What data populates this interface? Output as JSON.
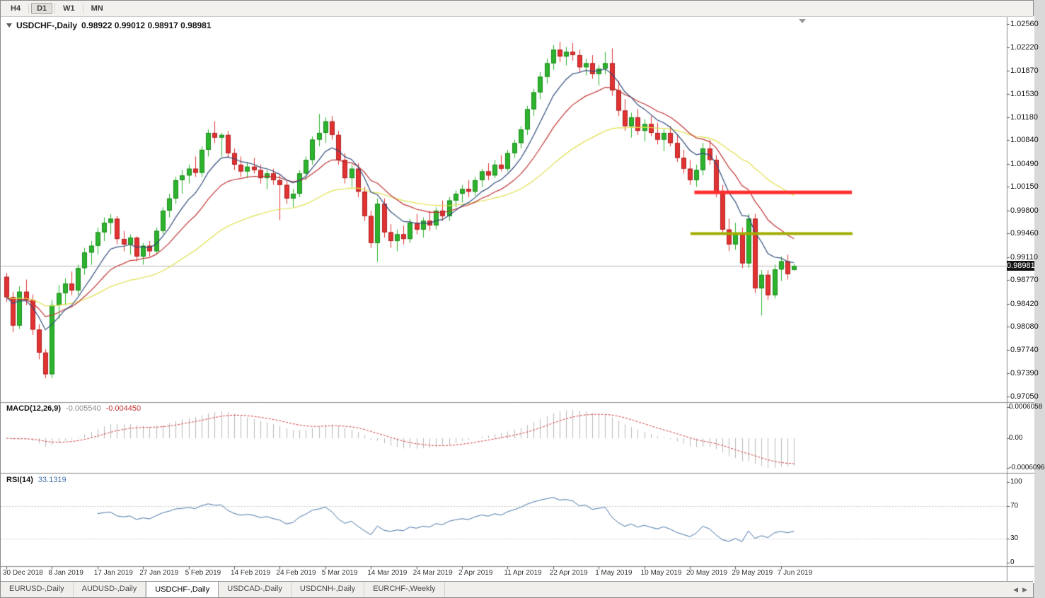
{
  "toolbar": {
    "timeframes": [
      "H4",
      "D1",
      "W1",
      "MN"
    ],
    "active_index": 1
  },
  "header": {
    "symbol": "USDCHF-,Daily",
    "ohlc": "0.98922 0.99012 0.98917 0.98981"
  },
  "price_axis": {
    "labels": [
      "1.02560",
      "1.02220",
      "1.01870",
      "1.01530",
      "1.01180",
      "1.00840",
      "1.00490",
      "1.00150",
      "0.99800",
      "0.99460",
      "0.99110",
      "0.98770",
      "0.98420",
      "0.98080",
      "0.97740",
      "0.97390",
      "0.97050"
    ],
    "current_badge": "0.98981"
  },
  "macd_panel": {
    "label": "MACD(12,26,9)",
    "value_main": "-0.005540",
    "value_signal": "-0.004450",
    "axis_labels": [
      "0.0006058",
      "0.00",
      "-0.0006096"
    ]
  },
  "rsi_panel": {
    "label": "RSI(14)",
    "value": "33.1319",
    "axis_labels": [
      "100",
      "70",
      "30",
      "0"
    ],
    "axis_values": [
      100,
      70,
      30,
      0
    ],
    "levels": [
      70,
      30
    ]
  },
  "date_axis": [
    {
      "text": "30 Dec 2018",
      "bar": 0
    },
    {
      "text": "8 Jan 2019",
      "bar": 7
    },
    {
      "text": "17 Jan 2019",
      "bar": 14
    },
    {
      "text": "27 Jan 2019",
      "bar": 21
    },
    {
      "text": "5 Feb 2019",
      "bar": 28
    },
    {
      "text": "14 Feb 2019",
      "bar": 35
    },
    {
      "text": "24 Feb 2019",
      "bar": 42
    },
    {
      "text": "5 Mar 2019",
      "bar": 49
    },
    {
      "text": "14 Mar 2019",
      "bar": 56
    },
    {
      "text": "24 Mar 2019",
      "bar": 63
    },
    {
      "text": "2 Apr 2019",
      "bar": 70
    },
    {
      "text": "11 Apr 2019",
      "bar": 77
    },
    {
      "text": "22 Apr 2019",
      "bar": 84
    },
    {
      "text": "1 May 2019",
      "bar": 91
    },
    {
      "text": "10 May 2019",
      "bar": 98
    },
    {
      "text": "20 May 2019",
      "bar": 105
    },
    {
      "text": "29 May 2019",
      "bar": 112
    },
    {
      "text": "7 Jun 2019",
      "bar": 119
    }
  ],
  "tabs": {
    "items": [
      "EURUSD-,Daily",
      "AUDUSD-,Daily",
      "USDCHF-,Daily",
      "USDCAD-,Daily",
      "USDCNH-,Daily",
      "EURCHF-,Weekly"
    ],
    "active_index": 2,
    "nav_left": "◀",
    "nav_right": "▶"
  },
  "chart_data": {
    "type": "candlestick",
    "symbol": "USDCHF",
    "timeframe": "Daily",
    "current_price": 0.98981,
    "price_axis_top": 1.0256,
    "price_axis_bottom": 0.9705,
    "candles": [
      [
        0.9882,
        0.9888,
        0.9845,
        0.9852
      ],
      [
        0.9852,
        0.986,
        0.98,
        0.981
      ],
      [
        0.981,
        0.9868,
        0.9805,
        0.986
      ],
      [
        0.986,
        0.9878,
        0.984,
        0.9848
      ],
      [
        0.9848,
        0.9856,
        0.9796,
        0.9804
      ],
      [
        0.9804,
        0.9812,
        0.976,
        0.977
      ],
      [
        0.977,
        0.9775,
        0.9732,
        0.9738
      ],
      [
        0.9738,
        0.9848,
        0.9732,
        0.984
      ],
      [
        0.984,
        0.987,
        0.982,
        0.9858
      ],
      [
        0.9858,
        0.988,
        0.984,
        0.9872
      ],
      [
        0.9872,
        0.989,
        0.9855,
        0.9862
      ],
      [
        0.9862,
        0.99,
        0.9855,
        0.9895
      ],
      [
        0.9895,
        0.9925,
        0.9885,
        0.9918
      ],
      [
        0.9918,
        0.9935,
        0.99,
        0.9928
      ],
      [
        0.9928,
        0.9955,
        0.9915,
        0.9948
      ],
      [
        0.9948,
        0.997,
        0.9935,
        0.9962
      ],
      [
        0.9962,
        0.9975,
        0.9945,
        0.9968
      ],
      [
        0.9968,
        0.9972,
        0.993,
        0.9938
      ],
      [
        0.9938,
        0.995,
        0.992,
        0.993
      ],
      [
        0.993,
        0.9945,
        0.9915,
        0.994
      ],
      [
        0.994,
        0.9942,
        0.9905,
        0.9912
      ],
      [
        0.9912,
        0.9932,
        0.99,
        0.9928
      ],
      [
        0.9928,
        0.9935,
        0.9912,
        0.992
      ],
      [
        0.992,
        0.9955,
        0.9915,
        0.995
      ],
      [
        0.995,
        0.9985,
        0.9945,
        0.998
      ],
      [
        0.998,
        1.0005,
        0.997,
        0.9998
      ],
      [
        0.9998,
        1.003,
        0.999,
        1.0025
      ],
      [
        1.0025,
        1.004,
        1.0005,
        1.0032
      ],
      [
        1.0032,
        1.0048,
        1.002,
        1.0042
      ],
      [
        1.0042,
        1.006,
        1.003,
        1.0036
      ],
      [
        1.0036,
        1.0075,
        1.003,
        1.007
      ],
      [
        1.007,
        1.01,
        1.006,
        1.0095
      ],
      [
        1.0095,
        1.0112,
        1.008,
        1.0088
      ],
      [
        1.0088,
        1.0095,
        1.006,
        1.0092
      ],
      [
        1.0092,
        1.0098,
        1.0058,
        1.0065
      ],
      [
        1.0065,
        1.0072,
        1.004,
        1.0048
      ],
      [
        1.0048,
        1.006,
        1.003,
        1.0038
      ],
      [
        1.0038,
        1.0052,
        1.0028,
        1.0045
      ],
      [
        1.0045,
        1.0058,
        1.0035,
        1.004
      ],
      [
        1.004,
        1.0048,
        1.002,
        1.0028
      ],
      [
        1.0028,
        1.004,
        1.0012,
        1.0035
      ],
      [
        1.0035,
        1.0042,
        1.0018,
        1.0025
      ],
      [
        1.0025,
        1.0032,
        0.9966,
        1.0018
      ],
      [
        1.0018,
        1.0025,
        0.999,
        0.9998
      ],
      [
        0.9998,
        1.0012,
        0.9985,
        1.0005
      ],
      [
        1.0005,
        1.004,
        1.0,
        1.0035
      ],
      [
        1.0035,
        1.006,
        1.0025,
        1.0055
      ],
      [
        1.0055,
        1.009,
        1.0048,
        1.0085
      ],
      [
        1.0085,
        1.0123,
        1.0075,
        1.0095
      ],
      [
        1.0095,
        1.0118,
        1.008,
        1.0112
      ],
      [
        1.0112,
        1.012,
        1.0085,
        1.0092
      ],
      [
        1.0092,
        1.0098,
        1.0048,
        1.0055
      ],
      [
        1.0055,
        1.0065,
        1.002,
        1.0028
      ],
      [
        1.0028,
        1.0048,
        1.0015,
        1.0042
      ],
      [
        1.0042,
        1.005,
        1.0,
        1.0008
      ],
      [
        1.0008,
        1.0015,
        0.9965,
        0.9972
      ],
      [
        0.9972,
        0.998,
        0.9925,
        0.9932
      ],
      [
        0.9932,
        0.9998,
        0.9904,
        0.999
      ],
      [
        0.999,
        0.9998,
        0.994,
        0.9948
      ],
      [
        0.9948,
        0.996,
        0.9925,
        0.9935
      ],
      [
        0.9935,
        0.9952,
        0.992,
        0.9945
      ],
      [
        0.9945,
        0.9958,
        0.993,
        0.9938
      ],
      [
        0.9938,
        0.9968,
        0.9932,
        0.9962
      ],
      [
        0.9962,
        0.9975,
        0.9945,
        0.9952
      ],
      [
        0.9952,
        0.997,
        0.994,
        0.9965
      ],
      [
        0.9965,
        0.998,
        0.995,
        0.9958
      ],
      [
        0.9958,
        0.9985,
        0.9952,
        0.998
      ],
      [
        0.998,
        0.9995,
        0.9965,
        0.9972
      ],
      [
        0.9972,
        1.0,
        0.9965,
        0.9995
      ],
      [
        0.9995,
        1.001,
        0.9985,
        1.0005
      ],
      [
        1.0005,
        1.0018,
        0.9992,
        1.0012
      ],
      [
        1.0012,
        1.0025,
        1.0,
        1.0008
      ],
      [
        1.0008,
        1.003,
        1.0002,
        1.0025
      ],
      [
        1.0025,
        1.0042,
        1.0015,
        1.0038
      ],
      [
        1.0038,
        1.005,
        1.0025,
        1.0032
      ],
      [
        1.0032,
        1.0055,
        1.0028,
        1.0048
      ],
      [
        1.0048,
        1.0062,
        1.0038,
        1.0042
      ],
      [
        1.0042,
        1.007,
        1.0038,
        1.0065
      ],
      [
        1.0065,
        1.0085,
        1.0058,
        1.008
      ],
      [
        1.008,
        1.0105,
        1.0072,
        1.01
      ],
      [
        1.01,
        1.0135,
        1.0092,
        1.013
      ],
      [
        1.013,
        1.016,
        1.012,
        1.0155
      ],
      [
        1.0155,
        1.0185,
        1.0145,
        1.0178
      ],
      [
        1.0178,
        1.0205,
        1.0168,
        1.0198
      ],
      [
        1.0198,
        1.0225,
        1.0188,
        1.0218
      ],
      [
        1.0218,
        1.023,
        1.02,
        1.0208
      ],
      [
        1.0208,
        1.0222,
        1.0195,
        1.0215
      ],
      [
        1.0215,
        1.0228,
        1.0202,
        1.021
      ],
      [
        1.021,
        1.0218,
        1.0185,
        1.0192
      ],
      [
        1.0192,
        1.0205,
        1.018,
        1.0198
      ],
      [
        1.0198,
        1.021,
        1.0175,
        1.0182
      ],
      [
        1.0182,
        1.0195,
        1.0165,
        1.019
      ],
      [
        1.019,
        1.0215,
        1.0182,
        1.0198
      ],
      [
        1.0198,
        1.022,
        1.015,
        1.0158
      ],
      [
        1.0158,
        1.0172,
        1.012,
        1.0128
      ],
      [
        1.0128,
        1.0145,
        1.0098,
        1.0105
      ],
      [
        1.0105,
        1.0125,
        1.0088,
        1.0118
      ],
      [
        1.0118,
        1.013,
        1.0092,
        1.0098
      ],
      [
        1.0098,
        1.0115,
        1.0082,
        1.0108
      ],
      [
        1.0108,
        1.012,
        1.009,
        1.0095
      ],
      [
        1.0095,
        1.011,
        1.0078,
        1.0085
      ],
      [
        1.0085,
        1.01,
        1.0068,
        1.0095
      ],
      [
        1.0095,
        1.0105,
        1.0075,
        1.008
      ],
      [
        1.008,
        1.0092,
        1.0052,
        1.0058
      ],
      [
        1.0058,
        1.007,
        1.0035,
        1.0042
      ],
      [
        1.0042,
        1.0055,
        1.0018,
        1.0025
      ],
      [
        1.0025,
        1.0048,
        1.0015,
        1.004
      ],
      [
        1.004,
        1.008,
        1.0032,
        1.0072
      ],
      [
        1.0072,
        1.0085,
        1.0048,
        1.0055
      ],
      [
        1.0055,
        1.0062,
        1.0,
        1.0008
      ],
      [
        1.0008,
        1.0018,
        0.9945,
        0.9952
      ],
      [
        0.9952,
        0.9968,
        0.992,
        0.993
      ],
      [
        0.993,
        0.9962,
        0.9922,
        0.9945
      ],
      [
        0.9945,
        0.9955,
        0.9895,
        0.9902
      ],
      [
        0.9902,
        0.9975,
        0.9895,
        0.9968
      ],
      [
        0.9968,
        0.9975,
        0.9858,
        0.9865
      ],
      [
        0.9865,
        0.9892,
        0.9825,
        0.9885
      ],
      [
        0.9885,
        0.9892,
        0.9848,
        0.9855
      ],
      [
        0.9855,
        0.99,
        0.985,
        0.9893
      ],
      [
        0.9893,
        0.9912,
        0.9876,
        0.9905
      ],
      [
        0.9905,
        0.9915,
        0.9878,
        0.9886
      ],
      [
        0.98922,
        0.99012,
        0.98917,
        0.98981
      ]
    ],
    "moving_averages": [
      {
        "name": "fast",
        "period": 8,
        "color": "#2f4a7a"
      },
      {
        "name": "medium",
        "period": 16,
        "color": "#c23434"
      },
      {
        "name": "slow",
        "period": 40,
        "color": "#e0e04a"
      }
    ],
    "macd": {
      "fast": 12,
      "slow": 26,
      "signal": 9,
      "hist_color": "#b9b9b9",
      "signal_color": "#d43a3a"
    },
    "rsi": {
      "period": 14,
      "color": "#4674a8"
    },
    "hlines": [
      {
        "name": "resistance-line",
        "price": 1.0007,
        "from_bar": 105.7,
        "to_bar": 129.9,
        "color": "#ff2e2e",
        "width": 5
      },
      {
        "name": "support-line",
        "price": 0.9946,
        "from_bar": 105.1,
        "to_bar": 130.0,
        "color": "#a2ad00",
        "width": 4
      }
    ],
    "colors": {
      "bull": "#2db32d",
      "bull_border": "#1c8a1c",
      "bear": "#e23232",
      "bear_border": "#ad2020",
      "bid_line": "#b8b8b8",
      "separator": "#8c8c8c",
      "level_dash": "#c8c8c8"
    }
  }
}
